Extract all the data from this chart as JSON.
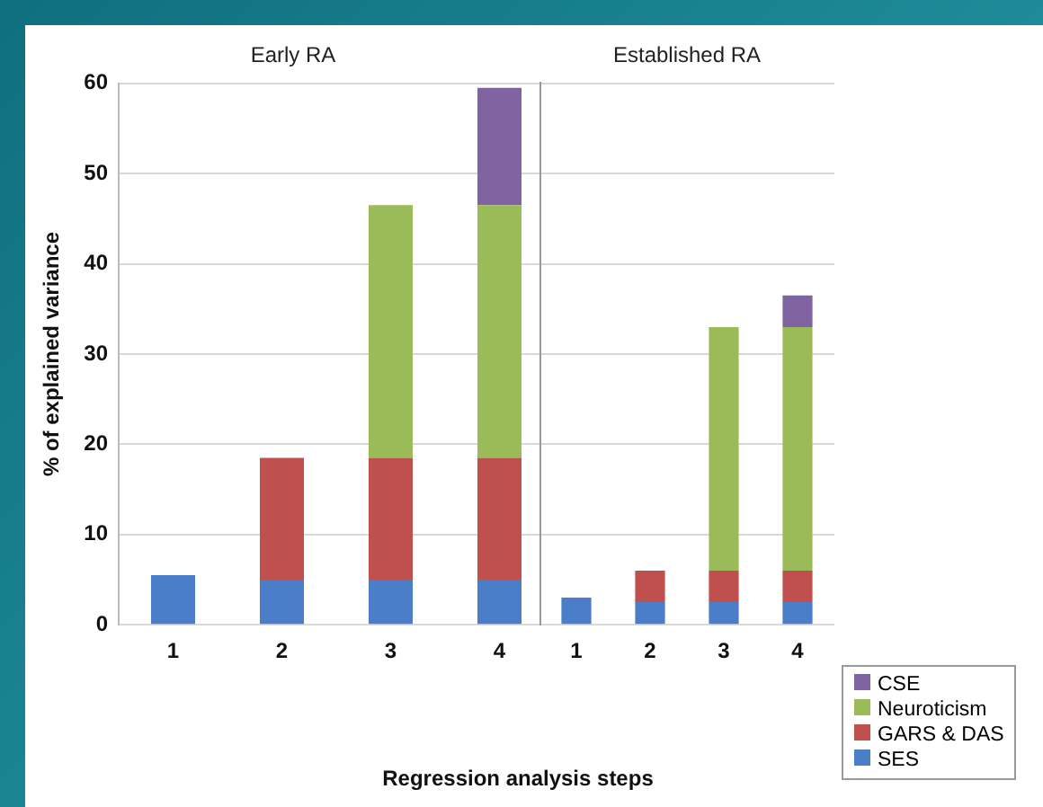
{
  "chart_data": [
    {
      "type": "bar",
      "title": "Early RA",
      "xlabel": "Regression analysis steps",
      "ylabel": "% of explained variance",
      "categories": [
        "1",
        "2",
        "3",
        "4"
      ],
      "stacked": true,
      "ylim": [
        0,
        60
      ],
      "yticks": [
        0,
        10,
        20,
        30,
        40,
        50,
        60
      ],
      "grid": "y",
      "series": [
        {
          "color": "#4a7ec8",
          "values": [
            5.5,
            5,
            5,
            5
          ]
        },
        {
          "color": "#c0504d",
          "values": [
            null,
            13.5,
            13.5,
            13.5
          ]
        },
        {
          "color": "#9bbb59",
          "values": [
            null,
            null,
            28,
            28
          ]
        },
        {
          "color": "#8064a2",
          "values": [
            null,
            null,
            null,
            13
          ]
        }
      ]
    },
    {
      "type": "bar",
      "title": "Established RA",
      "categories": [
        "1",
        "2",
        "3",
        "4"
      ],
      "stacked": true,
      "ylim": [
        0,
        60
      ],
      "yticks": [
        0,
        10,
        20,
        30,
        40,
        50,
        60
      ],
      "grid": "y",
      "tick_labels": "x",
      "legend": "bottom right",
      "series": [
        {
          "name": "SES",
          "color": "#4a7ec8",
          "values": [
            3,
            2.5,
            2.5,
            2.5
          ]
        },
        {
          "name": "GARS & DAS",
          "color": "#c0504d",
          "values": [
            null,
            3.5,
            3.5,
            3.5
          ]
        },
        {
          "name": "Neuroticism",
          "color": "#9bbb59",
          "values": [
            null,
            null,
            27,
            27
          ]
        },
        {
          "name": "CSE",
          "color": "#8064a2",
          "values": [
            null,
            null,
            null,
            3.5
          ]
        }
      ]
    }
  ]
}
